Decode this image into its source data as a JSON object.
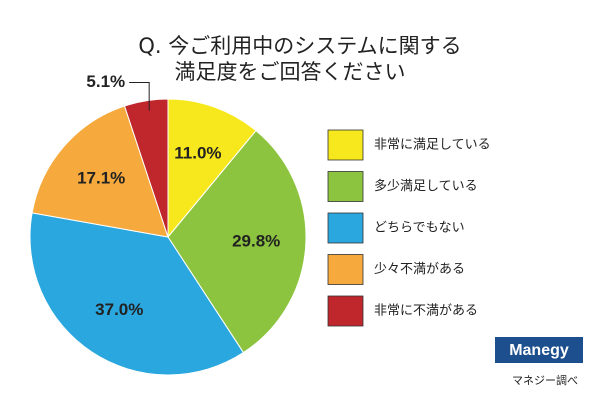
{
  "chart_data": {
    "type": "pie",
    "title": [
      "Q. 今ご利用中のシステムに関する",
      "満足度をご回答ください"
    ],
    "categories": [
      "非常に満足している",
      "多少満足している",
      "どちらでもない",
      "少々不満がある",
      "非常に不満がある"
    ],
    "values": [
      11.0,
      29.8,
      37.0,
      17.1,
      5.1
    ],
    "value_labels": [
      "11.0%",
      "29.8%",
      "37.0%",
      "17.1%",
      "5.1%"
    ],
    "colors": [
      "#f7e81d",
      "#8cc43f",
      "#2aa7df",
      "#f6a93c",
      "#c0272d"
    ],
    "legend": "right"
  },
  "logo": "Manegy",
  "source": "マネジー調べ"
}
